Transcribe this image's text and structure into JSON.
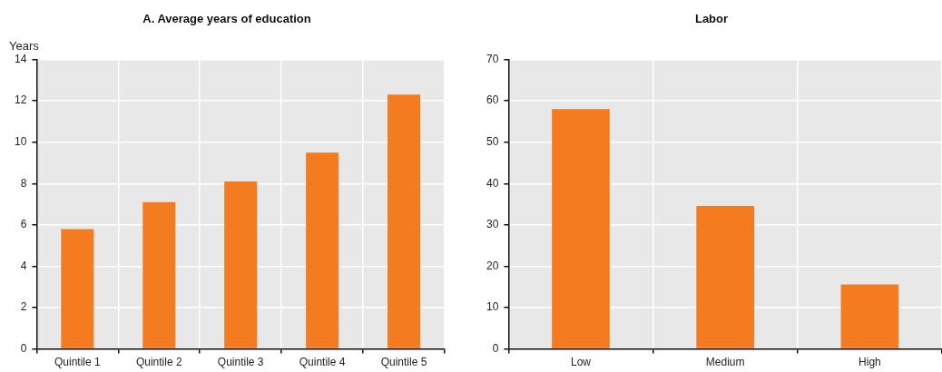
{
  "chart_data": [
    {
      "type": "bar",
      "title": "A. Average years of education",
      "ylabel": "Years",
      "categories": [
        "Quintile 1",
        "Quintile 2",
        "Quintile 3",
        "Quintile 4",
        "Quintile 5"
      ],
      "series": [
        {
          "color": "#f47b20",
          "values": [
            5.8,
            7.1,
            8.1,
            9.5,
            12.3
          ]
        }
      ],
      "ylim": [
        0,
        14
      ],
      "yticks": [
        0,
        2,
        4,
        6,
        8,
        10,
        12,
        14
      ],
      "grid": true,
      "legend": false
    },
    {
      "type": "bar",
      "title": "Labor",
      "categories": [
        "Low",
        "Medium",
        "High"
      ],
      "series": [
        {
          "color": "#f47b20",
          "values": [
            58,
            34.6,
            15.6
          ]
        }
      ],
      "ylim": [
        0,
        70
      ],
      "yticks": [
        0,
        10,
        20,
        30,
        40,
        50,
        60,
        70
      ],
      "grid": true,
      "legend": false
    }
  ]
}
